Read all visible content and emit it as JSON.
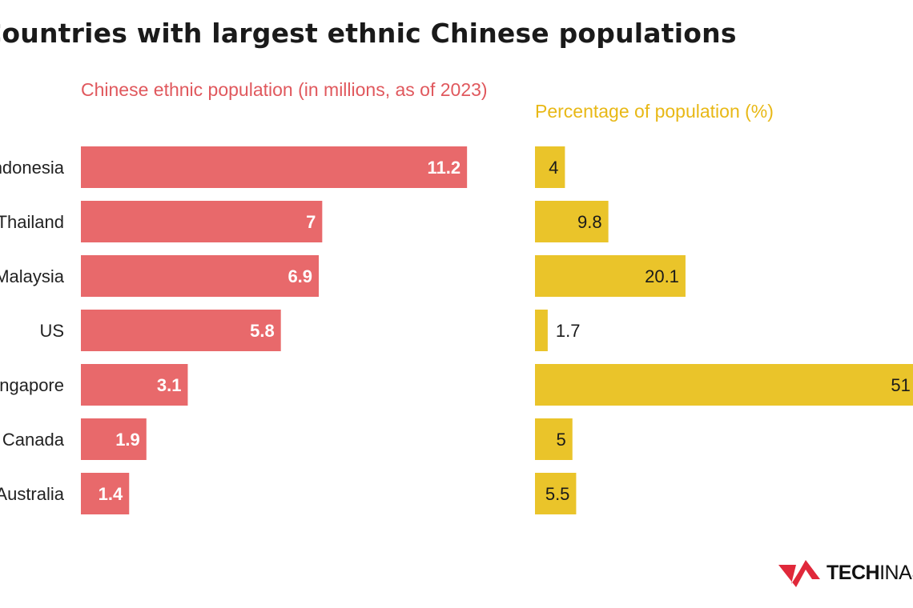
{
  "chart_data": [
    {
      "type": "bar",
      "orientation": "horizontal",
      "title": "Countries with largest ethnic Chinese populations",
      "subtitle": "Chinese ethnic population (in millions, as of 2023)",
      "categories": [
        "Indonesia",
        "Thailand",
        "Malaysia",
        "US",
        "Singapore",
        "Canada",
        "Australia"
      ],
      "values": [
        11.2,
        7,
        6.9,
        5.8,
        3.1,
        1.9,
        1.4
      ],
      "color": "#e8696b",
      "label_color": "#ffffff",
      "grid": false
    },
    {
      "type": "bar",
      "orientation": "horizontal",
      "subtitle": "Percentage of population (%)",
      "categories": [
        "Indonesia",
        "Thailand",
        "Malaysia",
        "US",
        "Singapore",
        "Canada",
        "Australia"
      ],
      "values": [
        4,
        9.8,
        20.1,
        1.7,
        51,
        5,
        5.5
      ],
      "labels": [
        "4",
        "9.8",
        "20.1",
        "1.7",
        "51",
        "5",
        "5.5"
      ],
      "color": "#eac42a",
      "label_color": "#1a1a1a",
      "grid": false
    }
  ],
  "logo": {
    "text_bold": "TECH",
    "text_light": "INASIA",
    "color": "#e0283a"
  }
}
